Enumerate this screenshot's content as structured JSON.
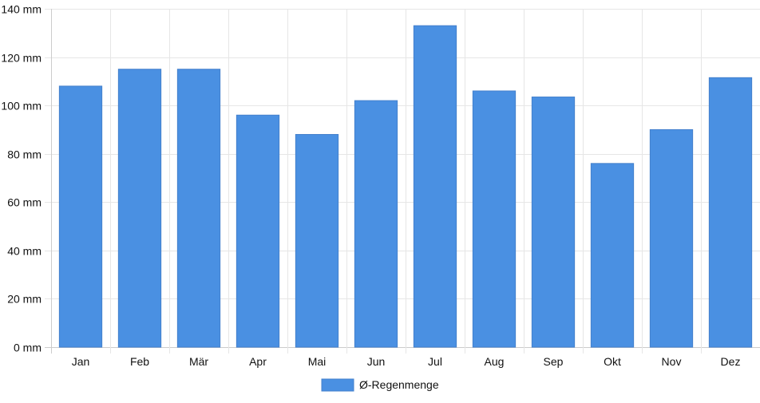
{
  "chart_data": {
    "type": "bar",
    "categories": [
      "Jan",
      "Feb",
      "Mär",
      "Apr",
      "Mai",
      "Jun",
      "Jul",
      "Aug",
      "Sep",
      "Okt",
      "Nov",
      "Dez"
    ],
    "series": [
      {
        "name": "Ø-Regenmenge",
        "values": [
          108,
          115,
          115,
          96,
          88,
          102,
          133,
          106,
          103.5,
          76,
          90,
          111.5
        ],
        "color": "#4a90e2"
      }
    ],
    "ylim": [
      0,
      140
    ],
    "yticks": [
      0,
      20,
      40,
      60,
      80,
      100,
      120,
      140
    ],
    "ytick_labels": [
      "0 mm",
      "20 mm",
      "40 mm",
      "60 mm",
      "80 mm",
      "100 mm",
      "120 mm",
      "140 mm"
    ],
    "grid": true,
    "legend_position": "bottom-center",
    "title": "",
    "xlabel": "",
    "ylabel": ""
  }
}
